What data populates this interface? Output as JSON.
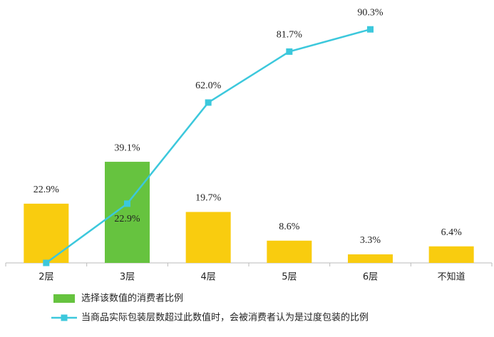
{
  "chart_data": {
    "type": "bar",
    "categories": [
      "2层",
      "3层",
      "4层",
      "5层",
      "6层",
      "不知道"
    ],
    "ylim": [
      0,
      100
    ],
    "series": [
      {
        "name": "选择该数值的消费者比例",
        "type": "bar",
        "color": "#66c33f",
        "colors": [
          "#f9cc0f",
          "#66c33f",
          "#f9cc0f",
          "#f9cc0f",
          "#f9cc0f",
          "#f9cc0f"
        ],
        "values": [
          22.9,
          39.1,
          19.7,
          8.6,
          3.3,
          6.4
        ],
        "value_labels": [
          "22.9%",
          "39.1%",
          "19.7%",
          "8.6%",
          "3.3%",
          "6.4%"
        ]
      },
      {
        "name": "当商品实际包装层数超过此数值时，会被消费者认为是过度包装的比例",
        "type": "line",
        "color": "#3cc8dc",
        "values": [
          0,
          22.9,
          62.0,
          81.7,
          90.3,
          null
        ],
        "value_labels": [
          null,
          "22.9%",
          "62.0%",
          "81.7%",
          "90.3%",
          null
        ]
      }
    ]
  }
}
